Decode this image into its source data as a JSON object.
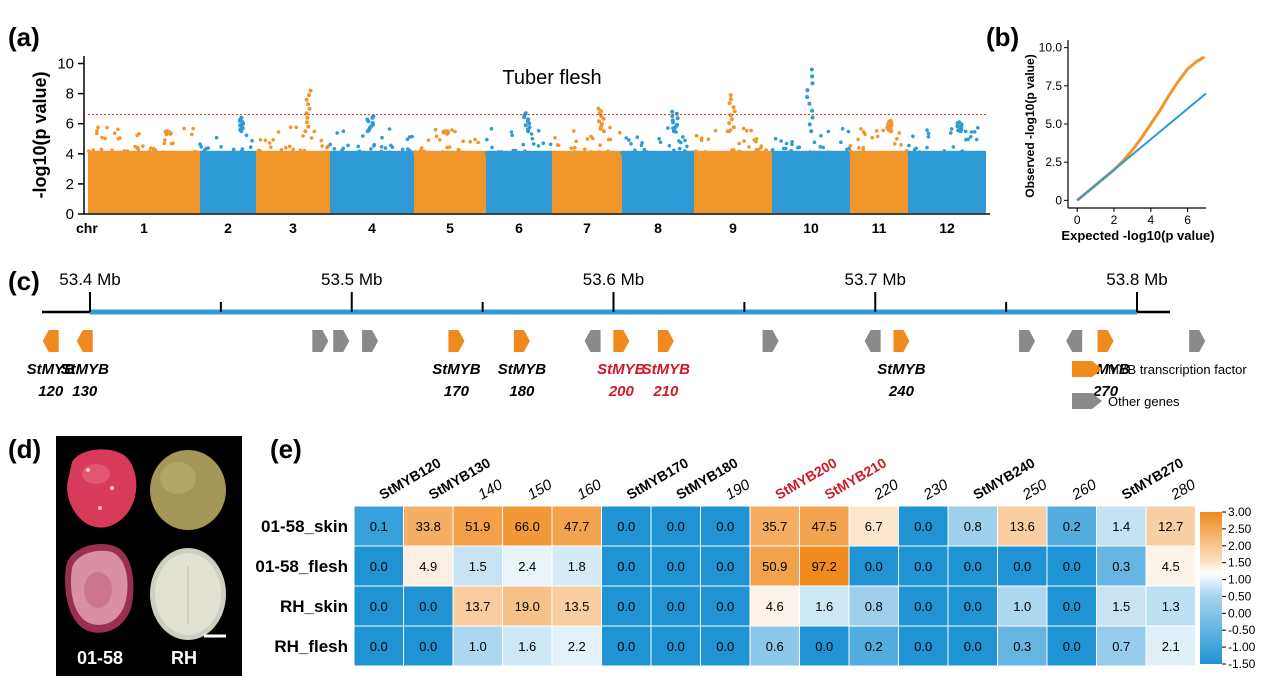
{
  "panels": {
    "a": {
      "label": "(a)",
      "title": "Tuber flesh",
      "ylabel": "-log10(p value)",
      "xlabel": "chr",
      "yticks": [
        "0",
        "2",
        "4",
        "6",
        "8",
        "10"
      ],
      "threshold": 6.6
    },
    "b": {
      "label": "(b)",
      "xlabel": "Expected -log10(p value)",
      "ylabel": "Observed -log10(p value)",
      "xticks": [
        "0",
        "2",
        "4",
        "6"
      ],
      "yticks": [
        "0",
        "2.5",
        "5.0",
        "7.5",
        "10.0"
      ]
    },
    "c": {
      "label": "(c)",
      "positions": [
        "53.4 Mb",
        "53.5 Mb",
        "53.6 Mb",
        "53.7 Mb",
        "53.8 Mb"
      ],
      "legend": {
        "myb": "MYB transcription factor",
        "other": "Other genes"
      }
    },
    "d": {
      "label": "(d)",
      "samples": [
        "01-58",
        "RH"
      ]
    },
    "e": {
      "label": "(e)"
    }
  },
  "chart_data": [
    {
      "type": "scatter",
      "panel": "a",
      "title": "Tuber flesh",
      "xlabel": "chr",
      "ylabel": "-log10(p value)",
      "ylim": [
        0,
        10.5
      ],
      "threshold": 6.6,
      "colors": {
        "odd": "#f0962a",
        "even": "#2e9bd6",
        "threshold": "#c0392b"
      },
      "chromosomes": [
        "1",
        "2",
        "3",
        "4",
        "5",
        "6",
        "7",
        "8",
        "9",
        "10",
        "11",
        "12"
      ],
      "peaks": [
        {
          "chr": "1",
          "value": 5.3
        },
        {
          "chr": "2",
          "value": 6.4
        },
        {
          "chr": "3",
          "value": 8.2
        },
        {
          "chr": "4",
          "value": 6.5
        },
        {
          "chr": "5",
          "value": 5.4
        },
        {
          "chr": "6",
          "value": 6.7
        },
        {
          "chr": "7",
          "value": 7.0
        },
        {
          "chr": "8",
          "value": 6.8
        },
        {
          "chr": "9",
          "value": 7.9
        },
        {
          "chr": "10",
          "value": 9.6
        },
        {
          "chr": "11",
          "value": 6.2
        },
        {
          "chr": "12",
          "value": 6.1
        }
      ]
    },
    {
      "type": "scatter",
      "panel": "b",
      "xlabel": "Expected -log10(p value)",
      "ylabel": "Observed -log10(p value)",
      "xlim": [
        -0.5,
        7
      ],
      "ylim": [
        -0.5,
        10.5
      ],
      "colors": {
        "points": "#f0962a",
        "expected": "#2e9bd6"
      },
      "series": [
        {
          "x": [
            0,
            1,
            2,
            2.5,
            3,
            3.5,
            4,
            4.5,
            5,
            5.5,
            6,
            6.5,
            6.8
          ],
          "y": [
            0,
            1,
            2,
            2.6,
            3.3,
            4.1,
            5.0,
            5.9,
            6.9,
            7.8,
            8.6,
            9.1,
            9.3
          ]
        }
      ]
    },
    {
      "type": "table",
      "panel": "e",
      "columns": [
        "StMYB120",
        "StMYB130",
        "140",
        "150",
        "160",
        "StMYB170",
        "StMYB180",
        "190",
        "StMYB200",
        "StMYB210",
        "220",
        "230",
        "StMYB240",
        "250",
        "260",
        "StMYB270",
        "280"
      ],
      "column_styles": [
        "bold",
        "bold",
        "normal",
        "normal",
        "normal",
        "bold",
        "bold",
        "normal",
        "red",
        "red",
        "normal",
        "normal",
        "bold",
        "normal",
        "normal",
        "bold",
        "normal"
      ],
      "rows": [
        "01-58_skin",
        "01-58_flesh",
        "RH_skin",
        "RH_flesh"
      ],
      "values": [
        [
          "0.1",
          "33.8",
          "51.9",
          "66.0",
          "47.7",
          "0.0",
          "0.0",
          "0.0",
          "35.7",
          "47.5",
          "6.7",
          "0.0",
          "0.8",
          "13.6",
          "0.2",
          "1.4",
          "12.7"
        ],
        [
          "0.0",
          "4.9",
          "1.5",
          "2.4",
          "1.8",
          "0.0",
          "0.0",
          "0.0",
          "50.9",
          "97.2",
          "0.0",
          "0.0",
          "0.0",
          "0.0",
          "0.0",
          "0.3",
          "4.5"
        ],
        [
          "0.0",
          "0.0",
          "13.7",
          "19.0",
          "13.5",
          "0.0",
          "0.0",
          "0.0",
          "4.6",
          "1.6",
          "0.8",
          "0.0",
          "0.0",
          "1.0",
          "0.0",
          "1.5",
          "1.3"
        ],
        [
          "0.0",
          "0.0",
          "1.0",
          "1.6",
          "2.2",
          "0.0",
          "0.0",
          "0.0",
          "0.6",
          "0.0",
          "0.2",
          "0.0",
          "0.0",
          "0.3",
          "0.0",
          "0.7",
          "2.1"
        ]
      ],
      "colorbar": [
        "3.00",
        "2.50",
        "2.00",
        "1.50",
        "1.00",
        "0.50",
        "0.00",
        "-0.50",
        "-1.00",
        "-1.50"
      ],
      "colorbar_range": [
        -1.5,
        3.0
      ],
      "colorscale": [
        "#1f93d4",
        "#ffffff",
        "#f08a1e"
      ]
    }
  ],
  "genes": [
    {
      "type": "myb",
      "dir": "left",
      "pos": 53.385,
      "label1": "StMYB",
      "label2": "120",
      "color": "black"
    },
    {
      "type": "myb",
      "dir": "left",
      "pos": 53.398,
      "label1": "StMYB",
      "label2": "130",
      "color": "black"
    },
    {
      "type": "other",
      "dir": "right",
      "pos": 53.488
    },
    {
      "type": "other",
      "dir": "right",
      "pos": 53.496
    },
    {
      "type": "other",
      "dir": "right",
      "pos": 53.507
    },
    {
      "type": "myb",
      "dir": "right",
      "pos": 53.54,
      "label1": "StMYB",
      "label2": "170",
      "color": "black"
    },
    {
      "type": "myb",
      "dir": "right",
      "pos": 53.565,
      "label1": "StMYB",
      "label2": "180",
      "color": "black"
    },
    {
      "type": "other",
      "dir": "left",
      "pos": 53.592
    },
    {
      "type": "myb",
      "dir": "right",
      "pos": 53.603,
      "label1": "StMYB",
      "label2": "200",
      "color": "red"
    },
    {
      "type": "myb",
      "dir": "right",
      "pos": 53.62,
      "label1": "StMYB",
      "label2": "210",
      "color": "red"
    },
    {
      "type": "other",
      "dir": "right",
      "pos": 53.66
    },
    {
      "type": "other",
      "dir": "left",
      "pos": 53.699
    },
    {
      "type": "myb",
      "dir": "right",
      "pos": 53.71,
      "label1": "StMYB",
      "label2": "240",
      "color": "black"
    },
    {
      "type": "other",
      "dir": "right",
      "pos": 53.758
    },
    {
      "type": "other",
      "dir": "left",
      "pos": 53.776
    },
    {
      "type": "myb",
      "dir": "right",
      "pos": 53.788,
      "label1": "StMYB",
      "label2": "270",
      "color": "black"
    },
    {
      "type": "other",
      "dir": "right",
      "pos": 53.823
    }
  ]
}
